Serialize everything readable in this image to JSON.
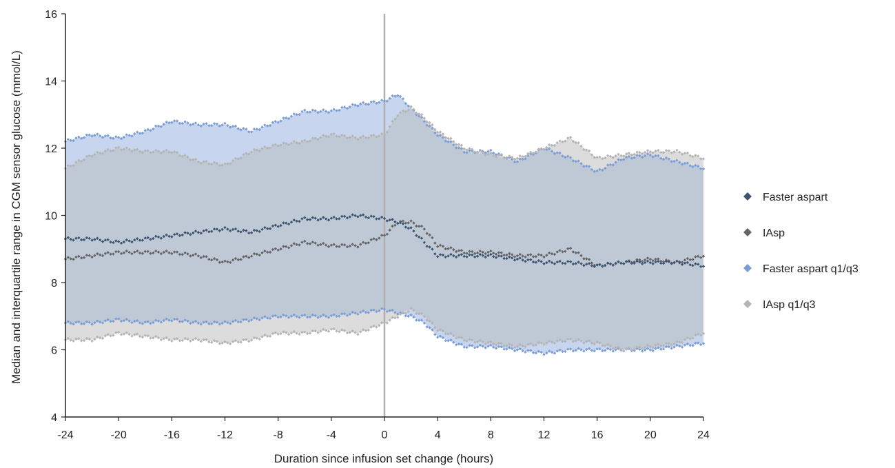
{
  "chart_data": {
    "type": "area",
    "xlabel": "Duration since infusion set change (hours)",
    "ylabel": "Median and interquartile range in CGM sensor glucose (mmol/L)",
    "xlim": [
      -24,
      24
    ],
    "ylim": [
      4,
      16
    ],
    "x_ticks": [
      "-24",
      "-20",
      "-16",
      "-12",
      "-8",
      "-4",
      "0",
      "4",
      "8",
      "12",
      "16",
      "20",
      "24"
    ],
    "y_ticks": [
      "4",
      "6",
      "8",
      "10",
      "12",
      "14",
      "16"
    ],
    "reference_line_x": 0,
    "grid": false,
    "legend_position": "right",
    "x": [
      -24,
      -22,
      -20,
      -18,
      -16,
      -14,
      -12,
      -10,
      -8,
      -6,
      -4,
      -2,
      0,
      1,
      2,
      3,
      4,
      6,
      8,
      10,
      12,
      14,
      16,
      18,
      20,
      22,
      24
    ],
    "series": [
      {
        "name": "Faster aspart",
        "color": "#3d5470",
        "marker": "diamond",
        "values": [
          9.3,
          9.3,
          9.2,
          9.3,
          9.4,
          9.5,
          9.6,
          9.5,
          9.7,
          9.9,
          9.9,
          10.0,
          9.9,
          9.8,
          9.6,
          9.2,
          8.8,
          8.8,
          8.8,
          8.7,
          8.6,
          8.6,
          8.5,
          8.6,
          8.6,
          8.6,
          8.5
        ]
      },
      {
        "name": "IAsp",
        "color": "#646464",
        "marker": "diamond",
        "values": [
          8.7,
          8.8,
          8.9,
          8.9,
          8.9,
          8.8,
          8.6,
          8.8,
          9.0,
          9.2,
          9.1,
          9.1,
          9.4,
          9.8,
          9.8,
          9.6,
          9.1,
          8.9,
          8.9,
          8.8,
          8.8,
          9.0,
          8.5,
          8.6,
          8.7,
          8.6,
          8.8
        ]
      },
      {
        "name": "Faster aspart q1/q3",
        "color": "#7b9dd6",
        "marker": "diamond",
        "q1": [
          6.8,
          6.8,
          6.9,
          6.8,
          6.9,
          6.8,
          6.8,
          6.9,
          7.0,
          7.0,
          7.0,
          7.1,
          7.2,
          7.1,
          7.0,
          6.8,
          6.4,
          6.1,
          6.1,
          6.0,
          5.9,
          6.0,
          6.0,
          6.0,
          6.0,
          6.1,
          6.2
        ],
        "q3": [
          12.2,
          12.4,
          12.3,
          12.5,
          12.8,
          12.7,
          12.7,
          12.5,
          12.8,
          13.1,
          13.1,
          13.3,
          13.4,
          13.6,
          13.2,
          12.8,
          12.4,
          11.9,
          11.9,
          11.6,
          12.0,
          11.7,
          11.3,
          11.7,
          11.8,
          11.6,
          11.4
        ]
      },
      {
        "name": "IAsp q1/q3",
        "color": "#b4b4b4",
        "marker": "diamond",
        "q1": [
          6.3,
          6.3,
          6.5,
          6.4,
          6.3,
          6.3,
          6.2,
          6.3,
          6.5,
          6.5,
          6.6,
          6.5,
          6.8,
          7.0,
          7.2,
          7.0,
          6.6,
          6.3,
          6.2,
          6.1,
          6.2,
          6.3,
          6.2,
          6.0,
          6.1,
          6.2,
          6.5
        ],
        "q3": [
          11.4,
          11.8,
          12.0,
          11.9,
          11.9,
          11.6,
          11.5,
          11.9,
          12.1,
          12.2,
          12.4,
          12.3,
          12.4,
          13.0,
          13.2,
          12.9,
          12.5,
          12.0,
          11.8,
          11.7,
          12.0,
          12.3,
          11.7,
          11.8,
          11.9,
          11.9,
          11.7
        ]
      }
    ]
  },
  "colors": {
    "faster_aspart_band": "#c7d5ee",
    "iasp_band": "#dcdcdc",
    "overlap_band": "#bfc9d6",
    "reference_line": "#b0b0b0",
    "axis": "#222222"
  }
}
